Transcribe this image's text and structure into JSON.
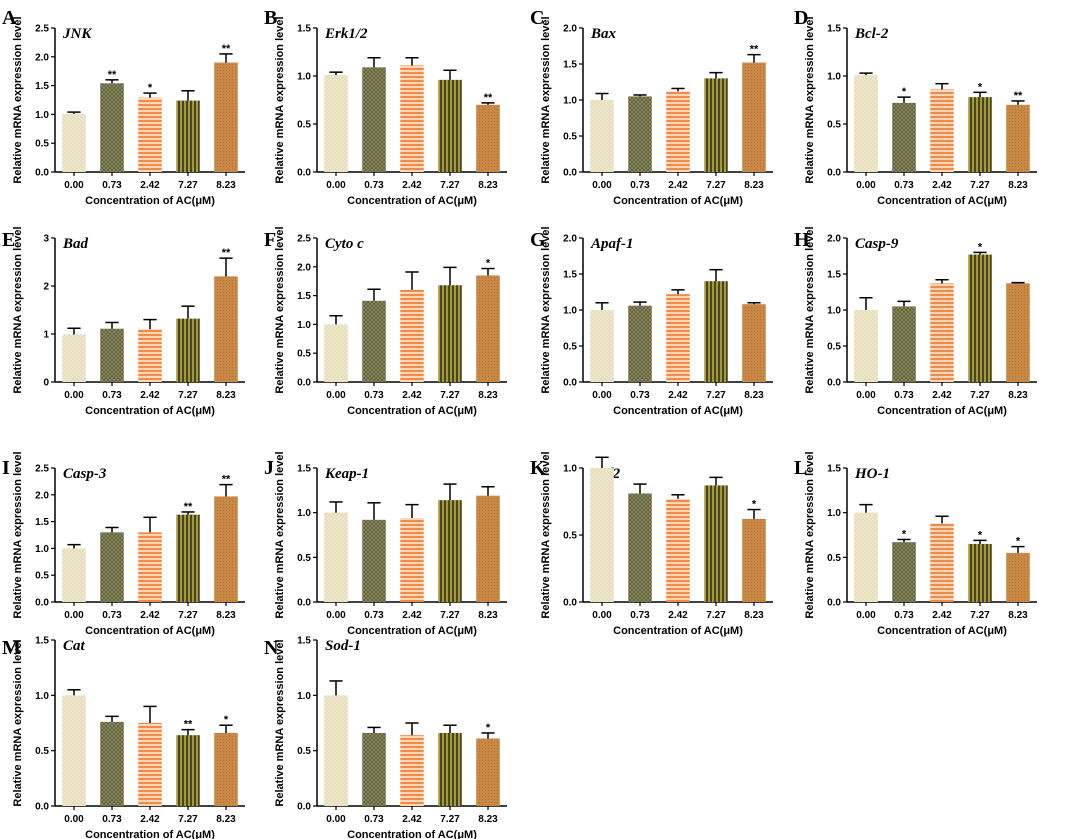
{
  "figure": {
    "shared_xlabel": "Concentration of AC(μM)",
    "shared_ylabel": "Relative mRNA expression level"
  },
  "series_colors": [
    "#ede6c8",
    "#6b6a45",
    "#f5a56e",
    "#8a8330",
    "#c98845"
  ],
  "chart_data": [
    {
      "type": "bar",
      "panel": "A",
      "title": "JNK",
      "categories": [
        "0.00",
        "0.73",
        "2.42",
        "7.27",
        "8.23"
      ],
      "values": [
        1.01,
        1.54,
        1.29,
        1.24,
        1.9
      ],
      "errors": [
        0.03,
        0.06,
        0.08,
        0.17,
        0.15
      ],
      "significance": [
        "",
        "**",
        "*",
        "",
        "**"
      ],
      "xlabel": "Concentration of AC(μM)",
      "ylabel": "Relative mRNA expression level",
      "ylim": [
        0,
        2.5
      ],
      "yticks": [
        "0.0",
        "0.5",
        "1.0",
        "1.5",
        "2.0",
        "2.5"
      ]
    },
    {
      "type": "bar",
      "panel": "B",
      "title": "Erk1/2",
      "categories": [
        "0.00",
        "0.73",
        "2.42",
        "7.27",
        "8.23"
      ],
      "values": [
        1.01,
        1.09,
        1.11,
        0.96,
        0.7
      ],
      "errors": [
        0.03,
        0.1,
        0.08,
        0.1,
        0.02
      ],
      "significance": [
        "",
        "",
        "",
        "",
        "**"
      ],
      "xlabel": "Concentration of AC(μM)",
      "ylabel": "Relative mRNA expression level",
      "ylim": [
        0,
        1.5
      ],
      "yticks": [
        "0.0",
        "0.5",
        "1.0",
        "1.5"
      ]
    },
    {
      "type": "bar",
      "panel": "C",
      "title": "Bax",
      "categories": [
        "0.00",
        "0.73",
        "2.42",
        "7.27",
        "8.23"
      ],
      "values": [
        1.0,
        1.05,
        1.12,
        1.3,
        1.52
      ],
      "errors": [
        0.09,
        0.02,
        0.04,
        0.08,
        0.11
      ],
      "significance": [
        "",
        "",
        "",
        "",
        "**"
      ],
      "xlabel": "Concentration of AC(μM)",
      "ylabel": "Relative mRNA expression level",
      "ylim": [
        0,
        2.0
      ],
      "yticks": [
        "0.0",
        "0.5",
        "1.0",
        "1.5",
        "2.0"
      ]
    },
    {
      "type": "bar",
      "panel": "D",
      "title": "Bcl-2",
      "categories": [
        "0.00",
        "0.73",
        "2.42",
        "7.27",
        "8.23"
      ],
      "values": [
        1.01,
        0.72,
        0.86,
        0.78,
        0.7
      ],
      "errors": [
        0.02,
        0.06,
        0.06,
        0.05,
        0.04
      ],
      "significance": [
        "",
        "*",
        "",
        "*",
        "**"
      ],
      "xlabel": "Concentration of AC(μM)",
      "ylabel": "Relative mRNA expression level",
      "ylim": [
        0,
        1.5
      ],
      "yticks": [
        "0.0",
        "0.5",
        "1.0",
        "1.5"
      ]
    },
    {
      "type": "bar",
      "panel": "E",
      "title": "Bad",
      "categories": [
        "0.00",
        "0.73",
        "2.42",
        "7.27",
        "8.23"
      ],
      "values": [
        0.99,
        1.11,
        1.1,
        1.32,
        2.2
      ],
      "errors": [
        0.13,
        0.13,
        0.2,
        0.26,
        0.38
      ],
      "significance": [
        "",
        "",
        "",
        "",
        "**"
      ],
      "xlabel": "Concentration of AC(μM)",
      "ylabel": "Relative mRNA expression level",
      "ylim": [
        0,
        3
      ],
      "yticks": [
        "0",
        "1",
        "2",
        "3"
      ]
    },
    {
      "type": "bar",
      "panel": "F",
      "title": "Cyto c",
      "categories": [
        "0.00",
        "0.73",
        "2.42",
        "7.27",
        "8.23"
      ],
      "values": [
        1.0,
        1.41,
        1.6,
        1.68,
        1.85
      ],
      "errors": [
        0.15,
        0.2,
        0.31,
        0.31,
        0.12
      ],
      "significance": [
        "",
        "",
        "",
        "",
        "*"
      ],
      "xlabel": "Concentration of AC(μM)",
      "ylabel": "Relative mRNA expression level",
      "ylim": [
        0,
        2.5
      ],
      "yticks": [
        "0.0",
        "0.5",
        "1.0",
        "1.5",
        "2.0",
        "2.5"
      ]
    },
    {
      "type": "bar",
      "panel": "G",
      "title": "Apaf-1",
      "categories": [
        "0.00",
        "0.73",
        "2.42",
        "7.27",
        "8.23"
      ],
      "values": [
        1.0,
        1.06,
        1.22,
        1.4,
        1.08
      ],
      "errors": [
        0.1,
        0.05,
        0.06,
        0.16,
        0.02
      ],
      "significance": [
        "",
        "",
        "",
        "",
        ""
      ],
      "xlabel": "Concentration of AC(μM)",
      "ylabel": "Relative mRNA expression level",
      "ylim": [
        0,
        2.0
      ],
      "yticks": [
        "0.0",
        "0.5",
        "1.0",
        "1.5",
        "2.0"
      ]
    },
    {
      "type": "bar",
      "panel": "H",
      "title": "Casp-9",
      "categories": [
        "0.00",
        "0.73",
        "2.42",
        "7.27",
        "8.23"
      ],
      "values": [
        1.0,
        1.05,
        1.37,
        1.77,
        1.37
      ],
      "errors": [
        0.17,
        0.07,
        0.05,
        0.03,
        0.01
      ],
      "significance": [
        "",
        "",
        "",
        "*",
        ""
      ],
      "xlabel": "Concentration of AC(μM)",
      "ylabel": "Relative mRNA expression level",
      "ylim": [
        0,
        2.0
      ],
      "yticks": [
        "0.0",
        "0.5",
        "1.0",
        "1.5",
        "2.0"
      ]
    },
    {
      "type": "bar",
      "panel": "I",
      "title": "Casp-3",
      "categories": [
        "0.00",
        "0.73",
        "2.42",
        "7.27",
        "8.23"
      ],
      "values": [
        1.0,
        1.3,
        1.3,
        1.63,
        1.97
      ],
      "errors": [
        0.07,
        0.09,
        0.28,
        0.05,
        0.22
      ],
      "significance": [
        "",
        "",
        "",
        "**",
        "**"
      ],
      "xlabel": "Concentration of AC(μM)",
      "ylabel": "Relative mRNA expression level",
      "ylim": [
        0,
        2.5
      ],
      "yticks": [
        "0.0",
        "0.5",
        "1.0",
        "1.5",
        "2.0",
        "2.5"
      ]
    },
    {
      "type": "bar",
      "panel": "J",
      "title": "Keap-1",
      "categories": [
        "0.00",
        "0.73",
        "2.42",
        "7.27",
        "8.23"
      ],
      "values": [
        1.0,
        0.92,
        0.94,
        1.14,
        1.19
      ],
      "errors": [
        0.12,
        0.19,
        0.15,
        0.18,
        0.1
      ],
      "significance": [
        "",
        "",
        "",
        "",
        ""
      ],
      "xlabel": "Concentration of AC(μM)",
      "ylabel": "Relative mRNA expression level",
      "ylim": [
        0,
        1.5
      ],
      "yticks": [
        "0.0",
        "0.5",
        "1.0",
        "1.5"
      ]
    },
    {
      "type": "bar",
      "panel": "K",
      "title": "Nrf2",
      "categories": [
        "0.00",
        "0.73",
        "2.42",
        "7.27",
        "8.23"
      ],
      "values": [
        1.0,
        0.81,
        0.77,
        0.87,
        0.62
      ],
      "errors": [
        0.08,
        0.07,
        0.03,
        0.06,
        0.07
      ],
      "significance": [
        "",
        "",
        "",
        "",
        "*"
      ],
      "xlabel": "Concentration of AC(μM)",
      "ylabel": "Relative mRNA expression level",
      "ylim": [
        0,
        1.0
      ],
      "yticks": [
        "0.0",
        "0.5",
        "1.0"
      ]
    },
    {
      "type": "bar",
      "panel": "L",
      "title": "HO-1",
      "categories": [
        "0.00",
        "0.73",
        "2.42",
        "7.27",
        "8.23"
      ],
      "values": [
        1.0,
        0.67,
        0.88,
        0.65,
        0.55
      ],
      "errors": [
        0.09,
        0.03,
        0.08,
        0.04,
        0.07
      ],
      "significance": [
        "",
        "*",
        "",
        "*",
        "*"
      ],
      "xlabel": "Concentration of AC(μM)",
      "ylabel": "Relative mRNA expression level",
      "ylim": [
        0,
        1.5
      ],
      "yticks": [
        "0.0",
        "0.5",
        "1.0",
        "1.5"
      ]
    },
    {
      "type": "bar",
      "panel": "M",
      "title": "Cat",
      "categories": [
        "0.00",
        "0.73",
        "2.42",
        "7.27",
        "8.23"
      ],
      "values": [
        1.0,
        0.76,
        0.75,
        0.64,
        0.66
      ],
      "errors": [
        0.05,
        0.05,
        0.15,
        0.05,
        0.07
      ],
      "significance": [
        "",
        "",
        "",
        "**",
        "*"
      ],
      "xlabel": "Concentration of AC(μM)",
      "ylabel": "Relative mRNA expression level",
      "ylim": [
        0,
        1.5
      ],
      "yticks": [
        "0.0",
        "0.5",
        "1.0",
        "1.5"
      ]
    },
    {
      "type": "bar",
      "panel": "N",
      "title": "Sod-1",
      "categories": [
        "0.00",
        "0.73",
        "2.42",
        "7.27",
        "8.23"
      ],
      "values": [
        1.0,
        0.66,
        0.64,
        0.66,
        0.61
      ],
      "errors": [
        0.13,
        0.05,
        0.11,
        0.07,
        0.05
      ],
      "significance": [
        "",
        "",
        "",
        "",
        "*"
      ],
      "xlabel": "Concentration of AC(μM)",
      "ylabel": "Relative mRNA expression level",
      "ylim": [
        0,
        1.5
      ],
      "yticks": [
        "0.0",
        "0.5",
        "1.0",
        "1.5"
      ]
    }
  ]
}
